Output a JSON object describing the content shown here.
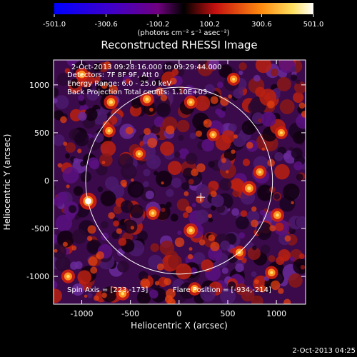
{
  "colorbar": {
    "tick_labels": [
      "-501.0",
      "-300.6",
      "-100.2",
      "100.2",
      "300.6",
      "501.0"
    ],
    "range": [
      -501.0,
      501.0
    ],
    "units_label": "(photons cm⁻² s⁻¹ asec⁻²)",
    "colors": [
      "#0000ff",
      "#7000a0",
      "#000000",
      "#cc1010",
      "#ff8c10",
      "#ffffff"
    ]
  },
  "image_info": {
    "time_range": "2-Oct-2013 09:28:16.000 to 09:29:44.000",
    "detectors": "Detectors: 7F 8F 9F, Att 0",
    "energy_range": "Energy Range: 6.0 - 25.0 keV",
    "method": "Back Projection   Total counts: 1.10E+03",
    "spin_axis": "Spin Axis = [223,-173]",
    "flare_position": "Flare Position = [-934,-214]"
  },
  "timestamp": "2-Oct-2013 04:25",
  "chart_data": {
    "type": "heatmap",
    "title": "Reconstructed RHESSI Image",
    "xlabel": "Heliocentric X (arcsec)",
    "ylabel": "Heliocentric Y (arcsec)",
    "xlim": [
      -1290,
      1300
    ],
    "ylim": [
      -1290,
      1260
    ],
    "x_ticks": [
      -1000,
      -500,
      0,
      500,
      1000
    ],
    "x_tick_labels": [
      "-1000",
      "-500",
      "0",
      "500",
      "1000"
    ],
    "y_ticks": [
      -1000,
      -500,
      0,
      500,
      1000
    ],
    "y_tick_labels": [
      "-1000",
      "-500",
      "0",
      "500",
      "1000"
    ],
    "solar_limb": {
      "center": [
        0,
        0
      ],
      "radius_arcsec": 960
    },
    "spin_axis_marker": [
      223,
      -173
    ],
    "bright_sources": [
      {
        "x": -934,
        "y": -214,
        "value": 501
      },
      {
        "x": -700,
        "y": 820,
        "value": 300
      },
      {
        "x": -330,
        "y": 850,
        "value": 280
      },
      {
        "x": 120,
        "y": 820,
        "value": 240
      },
      {
        "x": -720,
        "y": 520,
        "value": 220
      },
      {
        "x": 720,
        "y": -80,
        "value": 320
      },
      {
        "x": 830,
        "y": 90,
        "value": 240
      },
      {
        "x": 1010,
        "y": -360,
        "value": 260
      },
      {
        "x": 120,
        "y": -520,
        "value": 300
      },
      {
        "x": -270,
        "y": -340,
        "value": 240
      },
      {
        "x": 620,
        "y": -750,
        "value": 230
      },
      {
        "x": -580,
        "y": -1180,
        "value": 250
      },
      {
        "x": 160,
        "y": -1130,
        "value": 230
      },
      {
        "x": 1050,
        "y": 500,
        "value": 200
      },
      {
        "x": -1140,
        "y": -1000,
        "value": 260
      },
      {
        "x": 350,
        "y": 480,
        "value": 200
      },
      {
        "x": -410,
        "y": 280,
        "value": 210
      },
      {
        "x": 950,
        "y": -960,
        "value": 220
      },
      {
        "x": -1000,
        "y": 1110,
        "value": 230
      },
      {
        "x": 560,
        "y": 1060,
        "value": 200
      }
    ]
  }
}
